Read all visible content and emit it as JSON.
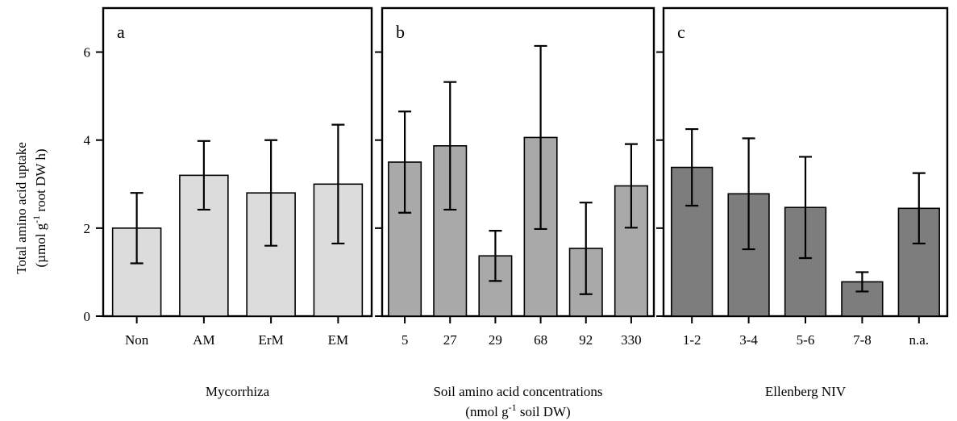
{
  "chart_data": {
    "type": "bar",
    "y_label_lines": [
      "Total amino acid uptake",
      "(µmol g",
      "-1",
      " root DW h)"
    ],
    "ylim": [
      0,
      7
    ],
    "y_ticks": [
      0,
      2,
      4,
      6
    ],
    "y_tick_labels": [
      "0",
      "2",
      "4",
      "6"
    ],
    "panels": [
      {
        "letter": "a",
        "xlabel_line1": "Mycorrhiza",
        "xlabel_line2_pre": "",
        "xlabel_line2_sup": "",
        "xlabel_line2_post": "",
        "categories": [
          "Non",
          "AM",
          "ErM",
          "EM"
        ],
        "values": [
          2.0,
          3.2,
          2.8,
          3.0
        ],
        "err_upper": [
          0.8,
          0.78,
          1.2,
          1.35
        ],
        "err_lower": [
          0.8,
          0.78,
          1.2,
          1.35
        ],
        "fill": "#dcdcdc"
      },
      {
        "letter": "b",
        "xlabel_line1": "Soil amino acid concentrations",
        "xlabel_line2_pre": "(nmol g",
        "xlabel_line2_sup": "-1",
        "xlabel_line2_post": " soil DW)",
        "categories": [
          "5",
          "27",
          "29",
          "68",
          "92",
          "330"
        ],
        "values": [
          3.5,
          3.87,
          1.37,
          4.06,
          1.54,
          2.96
        ],
        "err_upper": [
          1.15,
          1.45,
          0.57,
          2.08,
          1.04,
          0.95
        ],
        "err_lower": [
          1.15,
          1.45,
          0.57,
          2.08,
          1.04,
          0.95
        ],
        "fill": "#a9a9a9"
      },
      {
        "letter": "c",
        "xlabel_line1": "Ellenberg NIV",
        "xlabel_line2_pre": "",
        "xlabel_line2_sup": "",
        "xlabel_line2_post": "",
        "categories": [
          "1-2",
          "3-4",
          "5-6",
          "7-8",
          "n.a."
        ],
        "values": [
          3.38,
          2.78,
          2.47,
          0.78,
          2.45
        ],
        "err_upper": [
          0.87,
          1.26,
          1.15,
          0.22,
          0.8
        ],
        "err_lower": [
          0.87,
          1.26,
          1.15,
          0.22,
          0.8
        ],
        "fill": "#7d7d7d"
      }
    ]
  }
}
